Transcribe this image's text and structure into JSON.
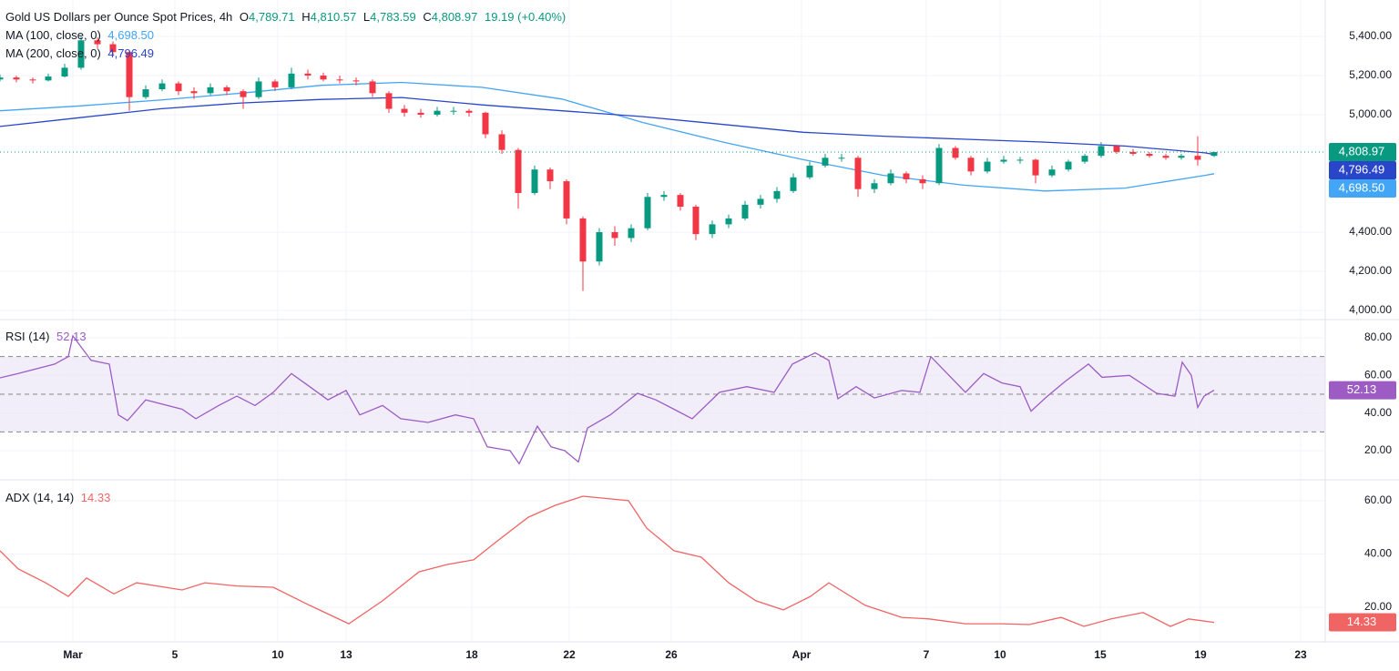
{
  "chart_data": [
    {
      "type": "candlestick",
      "title": "Gold US Dollars per Ounce Spot Prices, 4h",
      "ohlc_names": [
        "O",
        "H",
        "L",
        "C"
      ],
      "ohlc_values": [
        "4,789.71",
        "4,810.57",
        "4,783.59",
        "4,808.97"
      ],
      "change": "19.19 (+0.40%)",
      "last_label": "4,808.97",
      "up_color": "#089981",
      "down_color": "#f23645",
      "x": [
        0,
        18,
        36,
        53,
        71,
        89,
        107,
        124,
        142,
        160,
        178,
        196,
        213,
        231,
        249,
        267,
        284,
        302,
        320,
        338,
        355,
        373,
        391,
        409,
        427,
        444,
        462,
        480,
        498,
        515,
        533,
        551,
        569,
        587,
        604,
        622,
        640,
        658,
        675,
        693,
        711,
        729,
        747,
        764,
        782,
        800,
        818,
        835,
        853,
        871,
        889,
        906,
        924,
        942,
        960,
        978,
        995,
        1013,
        1031,
        1049,
        1066,
        1084,
        1102,
        1120,
        1137,
        1155,
        1173,
        1191,
        1209,
        1226,
        1244,
        1262,
        1280,
        1297,
        1315,
        1333
      ],
      "ohlc": [
        [
          5180,
          5205,
          5170,
          5190
        ],
        [
          5190,
          5200,
          5165,
          5180
        ],
        [
          5180,
          5190,
          5160,
          5175
        ],
        [
          5175,
          5210,
          5170,
          5195
        ],
        [
          5195,
          5260,
          5190,
          5240
        ],
        [
          5240,
          5400,
          5230,
          5380
        ],
        [
          5380,
          5395,
          5340,
          5360
        ],
        [
          5360,
          5375,
          5300,
          5320
        ],
        [
          5320,
          5330,
          5020,
          5090
        ],
        [
          5090,
          5150,
          5080,
          5130
        ],
        [
          5130,
          5180,
          5120,
          5160
        ],
        [
          5160,
          5170,
          5100,
          5120
        ],
        [
          5120,
          5140,
          5080,
          5110
        ],
        [
          5110,
          5160,
          5100,
          5140
        ],
        [
          5140,
          5150,
          5100,
          5120
        ],
        [
          5120,
          5130,
          5030,
          5090
        ],
        [
          5090,
          5190,
          5080,
          5170
        ],
        [
          5170,
          5180,
          5120,
          5140
        ],
        [
          5140,
          5240,
          5130,
          5210
        ],
        [
          5210,
          5230,
          5180,
          5200
        ],
        [
          5200,
          5215,
          5170,
          5180
        ],
        [
          5180,
          5200,
          5160,
          5175
        ],
        [
          5175,
          5190,
          5150,
          5170
        ],
        [
          5170,
          5180,
          5090,
          5110
        ],
        [
          5110,
          5120,
          5010,
          5030
        ],
        [
          5030,
          5050,
          4990,
          5010
        ],
        [
          5010,
          5030,
          4985,
          5000
        ],
        [
          5000,
          5040,
          4990,
          5020
        ],
        [
          5020,
          5040,
          5000,
          5020
        ],
        [
          5020,
          5030,
          4990,
          5010
        ],
        [
          5010,
          5015,
          4880,
          4900
        ],
        [
          4900,
          4920,
          4800,
          4820
        ],
        [
          4820,
          4830,
          4520,
          4600
        ],
        [
          4600,
          4740,
          4590,
          4720
        ],
        [
          4720,
          4730,
          4620,
          4660
        ],
        [
          4660,
          4670,
          4440,
          4470
        ],
        [
          4470,
          4480,
          4100,
          4250
        ],
        [
          4250,
          4420,
          4230,
          4400
        ],
        [
          4400,
          4430,
          4330,
          4370
        ],
        [
          4370,
          4440,
          4350,
          4420
        ],
        [
          4420,
          4600,
          4410,
          4580
        ],
        [
          4580,
          4610,
          4560,
          4590
        ],
        [
          4590,
          4600,
          4510,
          4530
        ],
        [
          4530,
          4540,
          4360,
          4390
        ],
        [
          4390,
          4460,
          4370,
          4440
        ],
        [
          4440,
          4490,
          4420,
          4470
        ],
        [
          4470,
          4560,
          4460,
          4540
        ],
        [
          4540,
          4590,
          4520,
          4570
        ],
        [
          4570,
          4630,
          4550,
          4610
        ],
        [
          4610,
          4700,
          4600,
          4680
        ],
        [
          4680,
          4760,
          4670,
          4740
        ],
        [
          4740,
          4800,
          4730,
          4780
        ],
        [
          4780,
          4800,
          4760,
          4780
        ],
        [
          4780,
          4790,
          4580,
          4620
        ],
        [
          4620,
          4670,
          4600,
          4650
        ],
        [
          4650,
          4720,
          4640,
          4700
        ],
        [
          4700,
          4710,
          4650,
          4670
        ],
        [
          4670,
          4690,
          4620,
          4650
        ],
        [
          4650,
          4850,
          4640,
          4830
        ],
        [
          4830,
          4840,
          4770,
          4780
        ],
        [
          4780,
          4790,
          4690,
          4710
        ],
        [
          4710,
          4780,
          4700,
          4760
        ],
        [
          4760,
          4790,
          4750,
          4770
        ],
        [
          4770,
          4785,
          4750,
          4770
        ],
        [
          4770,
          4775,
          4650,
          4690
        ],
        [
          4690,
          4740,
          4680,
          4720
        ],
        [
          4720,
          4770,
          4710,
          4760
        ],
        [
          4760,
          4800,
          4750,
          4790
        ],
        [
          4790,
          4860,
          4780,
          4840
        ],
        [
          4840,
          4845,
          4800,
          4810
        ],
        [
          4810,
          4825,
          4790,
          4800
        ],
        [
          4800,
          4810,
          4780,
          4790
        ],
        [
          4790,
          4800,
          4770,
          4780
        ],
        [
          4780,
          4800,
          4770,
          4790
        ],
        [
          4790,
          4890,
          4740,
          4770
        ],
        [
          4789.71,
          4810.57,
          4783.59,
          4808.97
        ]
      ],
      "series": [
        {
          "name": "MA (100, close, 0)",
          "color": "#42a5f5",
          "last_label": "4,698.50",
          "x": [
            0,
            88,
            176,
            265,
            353,
            441,
            529,
            617,
            706,
            794,
            882,
            970,
            1058,
            1147,
            1235,
            1323,
            1333
          ],
          "values": [
            5020,
            5045,
            5075,
            5110,
            5150,
            5165,
            5140,
            5080,
            4960,
            4860,
            4770,
            4690,
            4640,
            4610,
            4625,
            4690,
            4698.5
          ]
        },
        {
          "name": "MA (200, close, 0)",
          "color": "#2945c8",
          "last_label": "4,796.49",
          "x": [
            0,
            88,
            176,
            265,
            353,
            441,
            529,
            617,
            706,
            794,
            882,
            970,
            1058,
            1147,
            1235,
            1323,
            1333
          ],
          "values": [
            4940,
            4985,
            5030,
            5060,
            5078,
            5088,
            5050,
            5020,
            4990,
            4950,
            4910,
            4890,
            4875,
            4860,
            4840,
            4805,
            4796.49
          ]
        }
      ],
      "ylim": [
        3958,
        5586
      ],
      "yticks": [
        {
          "value": 4000,
          "label": "4,000.00"
        },
        {
          "value": 4200,
          "label": "4,200.00"
        },
        {
          "value": 4400,
          "label": "4,400.00"
        },
        {
          "value": 5000,
          "label": "5,000.00"
        },
        {
          "value": 5200,
          "label": "5,200.00"
        },
        {
          "value": 5400,
          "label": "5,400.00"
        }
      ],
      "xlim": [
        0,
        1455
      ],
      "xticks": [
        {
          "value": 80,
          "label": "Mar"
        },
        {
          "value": 192,
          "label": "5"
        },
        {
          "value": 305,
          "label": "10"
        },
        {
          "value": 380,
          "label": "13"
        },
        {
          "value": 518,
          "label": "18"
        },
        {
          "value": 625,
          "label": "22"
        },
        {
          "value": 737,
          "label": "26"
        },
        {
          "value": 880,
          "label": "Apr"
        },
        {
          "value": 1017,
          "label": "7"
        },
        {
          "value": 1098,
          "label": "10"
        },
        {
          "value": 1208,
          "label": "15"
        },
        {
          "value": 1318,
          "label": "19"
        },
        {
          "value": 1428,
          "label": "23"
        }
      ],
      "grid": true
    },
    {
      "type": "line",
      "series": [
        {
          "name": "RSI (14)",
          "color": "#9c5cc4",
          "last_label": "52.13",
          "x": [
            0,
            20,
            60,
            75,
            80,
            100,
            120,
            130,
            140,
            160,
            200,
            215,
            240,
            260,
            280,
            300,
            320,
            340,
            360,
            380,
            395,
            420,
            440,
            470,
            500,
            520,
            535,
            560,
            570,
            590,
            605,
            620,
            635,
            645,
            670,
            700,
            720,
            740,
            760,
            790,
            820,
            850,
            870,
            895,
            910,
            920,
            940,
            960,
            990,
            1010,
            1022,
            1040,
            1060,
            1080,
            1100,
            1120,
            1132,
            1150,
            1170,
            1195,
            1210,
            1240,
            1270,
            1290,
            1298,
            1308,
            1315,
            1322,
            1333
          ],
          "values": [
            58.7,
            61,
            66,
            70,
            81,
            68,
            66,
            39,
            36,
            47,
            42,
            37,
            44,
            49,
            44,
            51,
            61,
            54,
            47,
            52,
            39,
            44,
            37,
            35,
            39,
            37,
            22,
            20,
            13,
            33,
            22,
            20,
            14,
            32,
            39,
            50.5,
            47,
            42,
            37,
            51,
            54,
            51,
            66,
            72,
            68,
            47.6,
            54,
            48,
            52,
            51,
            70,
            61,
            51,
            61,
            56,
            54,
            41,
            49,
            57,
            66,
            59,
            60,
            50.5,
            49,
            67,
            60,
            43,
            49,
            52.13
          ]
        }
      ],
      "band": [
        30,
        70
      ],
      "band_color": "#ede7f6",
      "levels": [
        70,
        50,
        30
      ],
      "ylim": [
        4.5,
        89.2
      ],
      "yticks": [
        {
          "value": 20,
          "label": "20.00"
        },
        {
          "value": 40,
          "label": "40.00"
        },
        {
          "value": 60,
          "label": "60.00"
        },
        {
          "value": 80,
          "label": "80.00"
        }
      ],
      "grid": true
    },
    {
      "type": "line",
      "series": [
        {
          "name": "ADX (14, 14)",
          "color": "#f06464",
          "last_label": "14.33",
          "x": [
            0,
            20,
            50,
            75,
            95,
            125,
            150,
            200,
            225,
            260,
            300,
            340,
            383,
            420,
            460,
            490,
            520,
            545,
            580,
            610,
            640,
            690,
            710,
            740,
            770,
            800,
            830,
            860,
            890,
            910,
            950,
            990,
            1020,
            1060,
            1100,
            1130,
            1165,
            1190,
            1220,
            1255,
            1285,
            1305,
            1333
          ],
          "values": [
            41.2,
            34.4,
            29.2,
            24.1,
            31,
            25,
            29.2,
            26.5,
            29.2,
            28,
            27.5,
            20.7,
            13.8,
            22.4,
            33.3,
            36,
            37.8,
            44.6,
            53.8,
            58.3,
            61.7,
            60,
            49.7,
            41.2,
            38.8,
            29.2,
            22.4,
            19,
            24.1,
            29.2,
            20.7,
            16.2,
            15.6,
            13.8,
            13.8,
            13.5,
            16.2,
            12.8,
            15.6,
            18,
            12.8,
            15.6,
            14.33
          ]
        }
      ],
      "ylim": [
        7,
        67.5
      ],
      "yticks": [
        {
          "value": 20,
          "label": "20.00"
        },
        {
          "value": 40,
          "label": "40.00"
        },
        {
          "value": 60,
          "label": "60.00"
        }
      ],
      "grid": true
    }
  ]
}
